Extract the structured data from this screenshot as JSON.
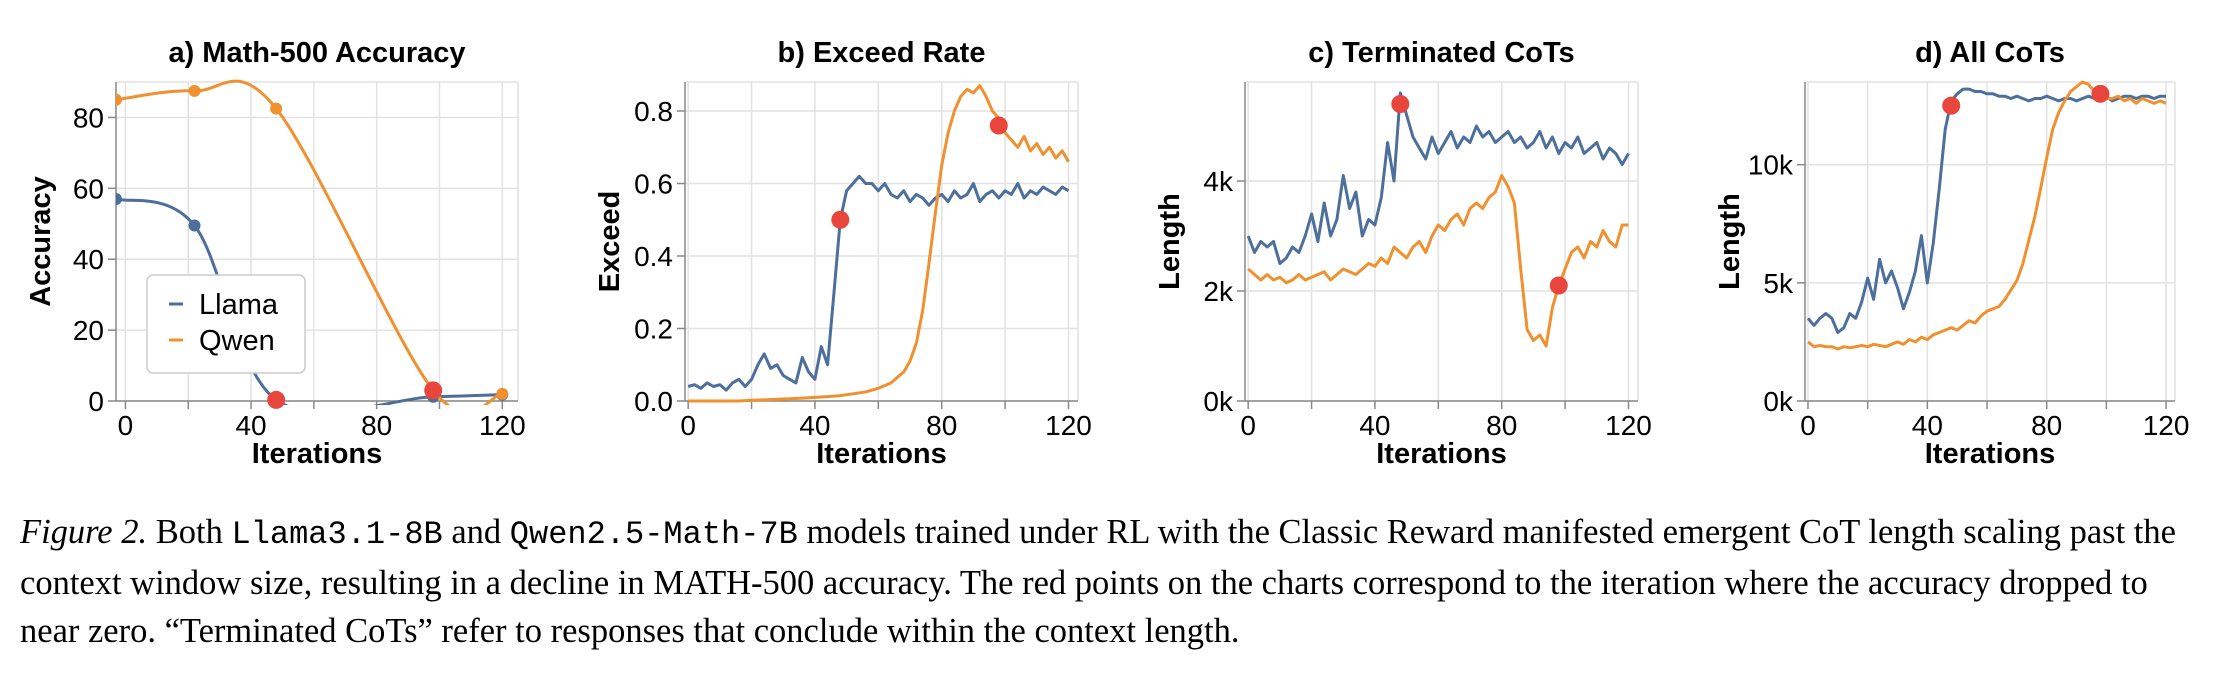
{
  "chart_data": [
    {
      "type": "line",
      "title": "a) Math-500 Accuracy",
      "xlabel": "Iterations",
      "ylabel": "Accuracy",
      "xlim": [
        -3,
        125
      ],
      "ylim": [
        0,
        90
      ],
      "xticks": [
        0,
        40,
        80,
        120
      ],
      "xtick_labels": [
        "0",
        "40",
        "80",
        "120"
      ],
      "xticks_minor": [
        20,
        60,
        100
      ],
      "yticks": [
        0,
        20,
        40,
        60,
        80
      ],
      "ytick_labels": [
        "0",
        "20",
        "40",
        "60",
        "80"
      ],
      "grid": true,
      "smooth": true,
      "legend": {
        "placement": "lower-left",
        "entries": [
          "Llama",
          "Qwen"
        ]
      },
      "series": [
        {
          "name": "Llama",
          "color": "#4c6f9c",
          "markers": true,
          "x": [
            -3,
            22,
            48,
            98,
            120
          ],
          "y": [
            57,
            49.5,
            0.3,
            1.2,
            1.8
          ]
        },
        {
          "name": "Qwen",
          "color": "#f0902f",
          "markers": true,
          "x": [
            -3,
            22,
            48,
            98,
            120
          ],
          "y": [
            85,
            87.5,
            82.5,
            3,
            2
          ]
        }
      ],
      "highlight_points": [
        {
          "x": 48,
          "y": 0.3
        },
        {
          "x": 98,
          "y": 3
        }
      ]
    },
    {
      "type": "line",
      "title": "b) Exceed Rate",
      "xlabel": "Iterations",
      "ylabel": "Exceed",
      "xlim": [
        -1,
        123
      ],
      "ylim": [
        0,
        0.88
      ],
      "xticks": [
        0,
        40,
        80,
        120
      ],
      "xtick_labels": [
        "0",
        "40",
        "80",
        "120"
      ],
      "xticks_minor": [
        20,
        60,
        100
      ],
      "yticks": [
        0,
        0.2,
        0.4,
        0.6,
        0.8
      ],
      "ytick_labels": [
        "0.0",
        "0.2",
        "0.4",
        "0.6",
        "0.8"
      ],
      "grid": true,
      "series": [
        {
          "name": "Llama",
          "color": "#4c6f9c",
          "x": [
            0,
            2,
            4,
            6,
            8,
            10,
            12,
            14,
            16,
            18,
            20,
            22,
            24,
            26,
            28,
            30,
            32,
            34,
            36,
            38,
            40,
            42,
            44,
            46,
            48,
            50,
            52,
            54,
            56,
            58,
            60,
            62,
            64,
            66,
            68,
            70,
            72,
            74,
            76,
            78,
            80,
            82,
            84,
            86,
            88,
            90,
            92,
            94,
            96,
            98,
            100,
            102,
            104,
            106,
            108,
            110,
            112,
            114,
            116,
            118,
            120
          ],
          "y": [
            0.04,
            0.045,
            0.035,
            0.05,
            0.04,
            0.045,
            0.03,
            0.05,
            0.06,
            0.04,
            0.06,
            0.1,
            0.13,
            0.09,
            0.1,
            0.07,
            0.06,
            0.05,
            0.12,
            0.08,
            0.06,
            0.15,
            0.1,
            0.3,
            0.5,
            0.58,
            0.6,
            0.62,
            0.6,
            0.6,
            0.58,
            0.6,
            0.57,
            0.56,
            0.58,
            0.55,
            0.57,
            0.56,
            0.54,
            0.56,
            0.57,
            0.55,
            0.58,
            0.56,
            0.57,
            0.6,
            0.55,
            0.57,
            0.58,
            0.56,
            0.58,
            0.57,
            0.6,
            0.56,
            0.58,
            0.57,
            0.59,
            0.58,
            0.57,
            0.59,
            0.58
          ]
        },
        {
          "name": "Qwen",
          "color": "#f0902f",
          "x": [
            0,
            4,
            8,
            12,
            16,
            20,
            24,
            28,
            32,
            36,
            40,
            44,
            48,
            52,
            56,
            60,
            64,
            66,
            68,
            70,
            72,
            74,
            76,
            78,
            80,
            82,
            84,
            86,
            88,
            90,
            92,
            94,
            96,
            98,
            100,
            102,
            104,
            106,
            108,
            110,
            112,
            114,
            116,
            118,
            120
          ],
          "y": [
            0,
            0,
            0,
            0,
            0,
            0.002,
            0.003,
            0.005,
            0.006,
            0.008,
            0.01,
            0.012,
            0.015,
            0.02,
            0.025,
            0.035,
            0.05,
            0.065,
            0.08,
            0.11,
            0.16,
            0.25,
            0.38,
            0.52,
            0.65,
            0.74,
            0.8,
            0.84,
            0.86,
            0.85,
            0.87,
            0.84,
            0.8,
            0.78,
            0.74,
            0.72,
            0.7,
            0.73,
            0.69,
            0.71,
            0.68,
            0.7,
            0.67,
            0.69,
            0.66
          ]
        }
      ],
      "highlight_points": [
        {
          "x": 48,
          "y": 0.5
        },
        {
          "x": 98,
          "y": 0.76
        }
      ]
    },
    {
      "type": "line",
      "title": "c) Terminated CoTs",
      "xlabel": "Iterations",
      "ylabel": "Length",
      "xlim": [
        -1,
        123
      ],
      "ylim": [
        0,
        5800
      ],
      "xticks": [
        0,
        40,
        80,
        120
      ],
      "xtick_labels": [
        "0",
        "40",
        "80",
        "120"
      ],
      "xticks_minor": [
        20,
        60,
        100
      ],
      "yticks": [
        0,
        2000,
        4000
      ],
      "ytick_labels": [
        "0k",
        "2k",
        "4k"
      ],
      "grid": true,
      "series": [
        {
          "name": "Llama",
          "color": "#4c6f9c",
          "x": [
            0,
            2,
            4,
            6,
            8,
            10,
            12,
            14,
            16,
            18,
            20,
            22,
            24,
            26,
            28,
            30,
            32,
            34,
            36,
            38,
            40,
            42,
            44,
            46,
            48,
            50,
            52,
            54,
            56,
            58,
            60,
            62,
            64,
            66,
            68,
            70,
            72,
            74,
            76,
            78,
            80,
            82,
            84,
            86,
            88,
            90,
            92,
            94,
            96,
            98,
            100,
            102,
            104,
            106,
            108,
            110,
            112,
            114,
            116,
            118,
            120
          ],
          "y": [
            3000,
            2700,
            2900,
            2800,
            2900,
            2500,
            2600,
            2800,
            2700,
            3000,
            3400,
            2900,
            3600,
            3000,
            3300,
            4100,
            3500,
            3800,
            3000,
            3300,
            3200,
            3700,
            4700,
            4000,
            5600,
            5200,
            4800,
            4600,
            4400,
            4800,
            4500,
            4700,
            4900,
            4600,
            4800,
            4700,
            5000,
            4800,
            4900,
            4700,
            4800,
            4900,
            4700,
            4800,
            4600,
            4700,
            4900,
            4600,
            4800,
            4500,
            4700,
            4600,
            4800,
            4500,
            4600,
            4700,
            4400,
            4600,
            4500,
            4300,
            4500
          ]
        },
        {
          "name": "Qwen",
          "color": "#f0902f",
          "x": [
            0,
            2,
            4,
            6,
            8,
            10,
            12,
            14,
            16,
            18,
            20,
            22,
            24,
            26,
            28,
            30,
            32,
            34,
            36,
            38,
            40,
            42,
            44,
            46,
            48,
            50,
            52,
            54,
            56,
            58,
            60,
            62,
            64,
            66,
            68,
            70,
            72,
            74,
            76,
            78,
            80,
            82,
            84,
            86,
            88,
            90,
            92,
            94,
            96,
            98,
            100,
            102,
            104,
            106,
            108,
            110,
            112,
            114,
            116,
            118,
            120
          ],
          "y": [
            2400,
            2300,
            2200,
            2300,
            2200,
            2250,
            2150,
            2200,
            2300,
            2200,
            2250,
            2300,
            2350,
            2200,
            2300,
            2400,
            2350,
            2300,
            2400,
            2500,
            2450,
            2600,
            2500,
            2800,
            2700,
            2600,
            2800,
            2900,
            2700,
            3000,
            3200,
            3100,
            3300,
            3400,
            3200,
            3500,
            3600,
            3500,
            3700,
            3800,
            4100,
            3900,
            3600,
            2400,
            1300,
            1100,
            1200,
            1000,
            1700,
            2100,
            2400,
            2700,
            2800,
            2600,
            2900,
            2800,
            3100,
            2900,
            2800,
            3200,
            3200
          ]
        }
      ],
      "highlight_points": [
        {
          "x": 48,
          "y": 5400
        },
        {
          "x": 98,
          "y": 2100
        }
      ]
    },
    {
      "type": "line",
      "title": "d) All CoTs",
      "xlabel": "Iterations",
      "ylabel": "Length",
      "xlim": [
        -1,
        123
      ],
      "ylim": [
        0,
        13500
      ],
      "xticks": [
        0,
        40,
        80,
        120
      ],
      "xtick_labels": [
        "0",
        "40",
        "80",
        "120"
      ],
      "xticks_minor": [
        20,
        60,
        100
      ],
      "yticks": [
        0,
        5000,
        10000
      ],
      "ytick_labels": [
        "0k",
        "5k",
        "10k"
      ],
      "grid": true,
      "series": [
        {
          "name": "Llama",
          "color": "#4c6f9c",
          "x": [
            0,
            2,
            4,
            6,
            8,
            10,
            12,
            14,
            16,
            18,
            20,
            22,
            24,
            26,
            28,
            30,
            32,
            34,
            36,
            38,
            40,
            42,
            44,
            46,
            48,
            50,
            52,
            54,
            56,
            58,
            60,
            62,
            64,
            66,
            68,
            70,
            72,
            74,
            76,
            78,
            80,
            82,
            84,
            86,
            88,
            90,
            92,
            94,
            96,
            98,
            100,
            102,
            104,
            106,
            108,
            110,
            112,
            114,
            116,
            118,
            120
          ],
          "y": [
            3500,
            3200,
            3500,
            3700,
            3500,
            2900,
            3100,
            3700,
            3500,
            4200,
            5200,
            4300,
            6000,
            5000,
            5500,
            4800,
            3900,
            4600,
            5500,
            7000,
            5000,
            6700,
            9000,
            11500,
            12700,
            13000,
            13200,
            13200,
            13100,
            13100,
            13000,
            13000,
            12900,
            12900,
            12800,
            12900,
            12800,
            12700,
            12800,
            12800,
            12900,
            12800,
            12700,
            12800,
            12800,
            12700,
            12800,
            12900,
            12800,
            12800,
            12900,
            12700,
            12800,
            12900,
            12900,
            12800,
            12900,
            12900,
            12800,
            12900,
            12900
          ]
        },
        {
          "name": "Qwen",
          "color": "#f0902f",
          "x": [
            0,
            2,
            4,
            6,
            8,
            10,
            12,
            14,
            16,
            18,
            20,
            22,
            24,
            26,
            28,
            30,
            32,
            34,
            36,
            38,
            40,
            42,
            44,
            46,
            48,
            50,
            52,
            54,
            56,
            58,
            60,
            62,
            64,
            66,
            68,
            70,
            72,
            74,
            76,
            78,
            80,
            82,
            84,
            86,
            88,
            90,
            92,
            94,
            96,
            98,
            100,
            102,
            104,
            106,
            108,
            110,
            112,
            114,
            116,
            118,
            120
          ],
          "y": [
            2500,
            2300,
            2350,
            2300,
            2300,
            2200,
            2300,
            2250,
            2300,
            2350,
            2300,
            2400,
            2350,
            2300,
            2400,
            2500,
            2400,
            2600,
            2500,
            2700,
            2600,
            2800,
            2900,
            3000,
            3100,
            3000,
            3200,
            3400,
            3300,
            3600,
            3800,
            3900,
            4000,
            4300,
            4700,
            5100,
            5800,
            6800,
            7800,
            9000,
            10300,
            11500,
            12200,
            12700,
            13100,
            13300,
            13500,
            13400,
            13100,
            12900,
            12800,
            12800,
            12900,
            12700,
            12800,
            12600,
            12800,
            12700,
            12600,
            12700,
            12600
          ]
        }
      ],
      "highlight_points": [
        {
          "x": 48,
          "y": 12500
        },
        {
          "x": 98,
          "y": 13000
        }
      ]
    }
  ],
  "caption": {
    "label": "Figure 2.",
    "t1": " Both ",
    "model1": "Llama3.1-8B",
    "t2": " and ",
    "model2": "Qwen2.5-Math-7B",
    "t3": " models trained under RL with the Classic Reward manifested emergent CoT length scaling past the context window size, resulting in a decline in MATH-500 accuracy. The red points on the charts correspond to the iteration where the accuracy dropped to near zero. “Terminated CoTs” refer to responses that conclude within the context length."
  },
  "highlight_color": "#e8453c"
}
